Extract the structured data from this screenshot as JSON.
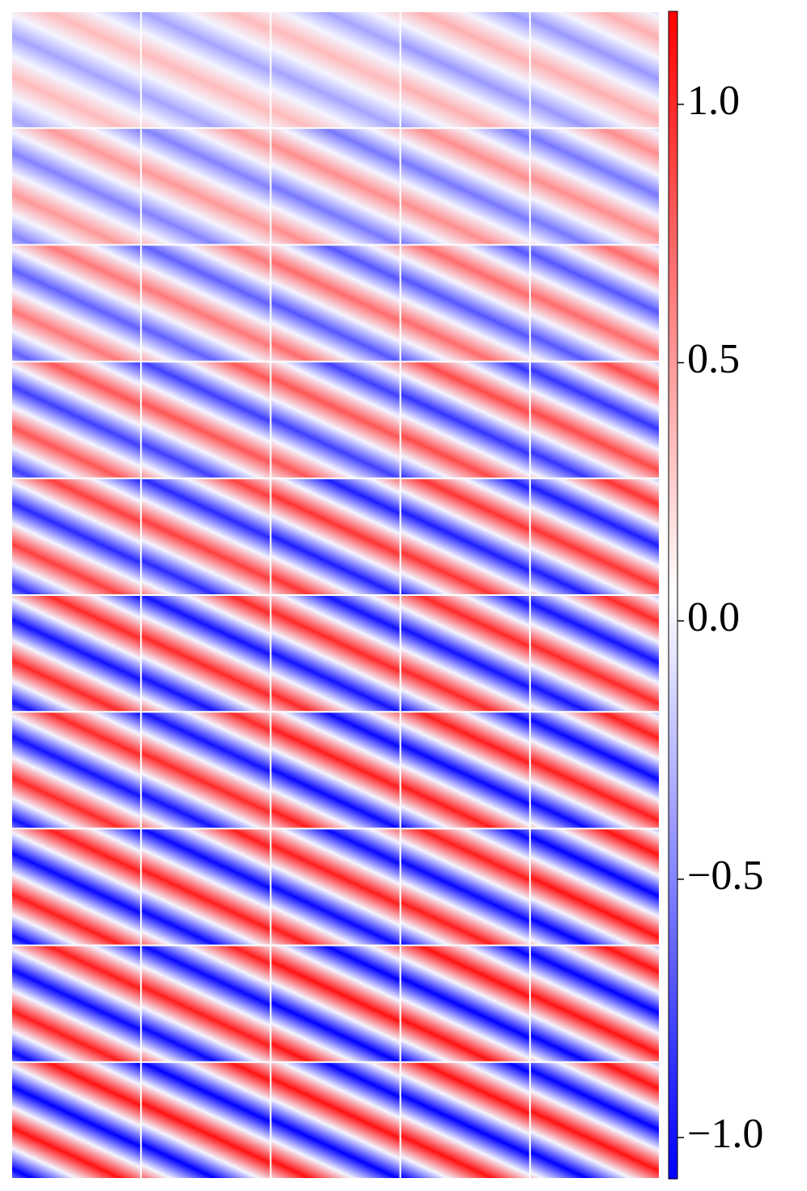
{
  "chart_data": {
    "type": "heatmap",
    "colormap": "bwr",
    "values": [
      [
        0.35,
        0.35,
        0.35,
        0.4,
        0.4
      ],
      [
        0.5,
        0.5,
        0.55,
        0.55,
        0.55
      ],
      [
        0.65,
        0.65,
        0.7,
        0.7,
        0.7
      ],
      [
        0.8,
        0.8,
        0.8,
        0.85,
        0.85
      ],
      [
        0.9,
        0.9,
        0.95,
        0.95,
        0.95
      ],
      [
        1.0,
        1.0,
        1.0,
        1.0,
        1.0
      ],
      [
        1.0,
        1.0,
        1.05,
        1.05,
        1.05
      ],
      [
        1.05,
        1.05,
        1.05,
        1.05,
        1.1
      ],
      [
        1.05,
        1.05,
        1.1,
        1.1,
        1.1
      ],
      [
        1.1,
        1.1,
        1.1,
        1.1,
        1.1
      ]
    ],
    "clim": [
      -1.08,
      1.18
    ],
    "cticks": [
      {
        "value": 1,
        "label": "1.0"
      },
      0.5,
      {
        "value": 0,
        "label": "0.0"
      },
      {
        "value": -0.5,
        "label": "−0.5"
      },
      {
        "value": -1,
        "label": "−1.0"
      }
    ]
  }
}
